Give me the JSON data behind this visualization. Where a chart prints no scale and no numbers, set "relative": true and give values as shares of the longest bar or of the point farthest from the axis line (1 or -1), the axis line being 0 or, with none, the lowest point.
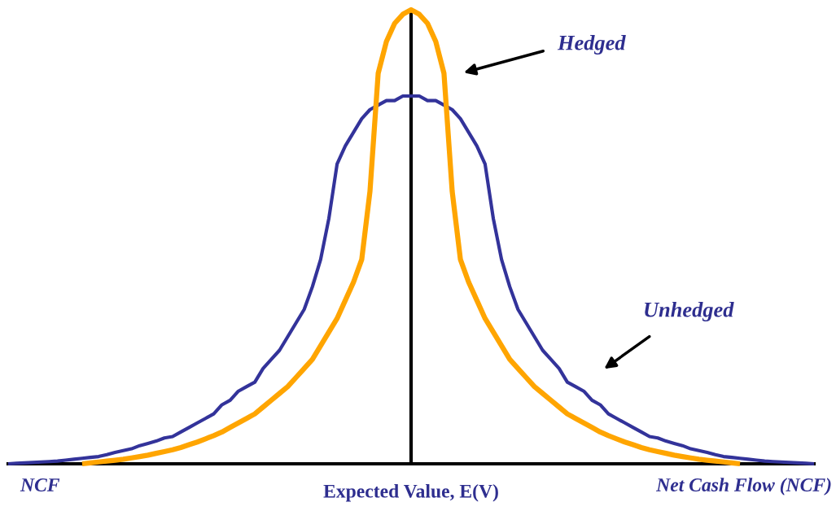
{
  "chart_data": {
    "type": "line",
    "relative": true,
    "xlabel": "Expected Value, E(V)",
    "categories": [
      null,
      null,
      null,
      null,
      null,
      null,
      null,
      null,
      null,
      null,
      null,
      null,
      null,
      null,
      null,
      null,
      null,
      null,
      null,
      null,
      null,
      null,
      null,
      null,
      null,
      null,
      null,
      null,
      null,
      null,
      null,
      null,
      null,
      null,
      null,
      null,
      null,
      null,
      null,
      null,
      null,
      null,
      null,
      null,
      null,
      null,
      null,
      null,
      null,
      null,
      null,
      null,
      null,
      null,
      null,
      null,
      null,
      null,
      null,
      null,
      null,
      null,
      null,
      null,
      null,
      null,
      null,
      null,
      null,
      null,
      null,
      null,
      null,
      null,
      null,
      null,
      null,
      null,
      null,
      null,
      null,
      null,
      null,
      null,
      null,
      null,
      null,
      null,
      null,
      null,
      null,
      null,
      null,
      null,
      null,
      null,
      null,
      null,
      null
    ],
    "series": [
      {
        "color": "#33339a",
        "values": [
          0,
          0.001,
          0.002,
          0.003,
          0.004,
          0.005,
          0.006,
          0.008,
          0.01,
          0.012,
          0.014,
          0.016,
          0.02,
          0.025,
          0.029,
          0.033,
          0.04,
          0.045,
          0.05,
          0.057,
          0.06,
          0.07,
          0.08,
          0.09,
          0.1,
          0.11,
          0.13,
          0.14,
          0.16,
          0.17,
          0.18,
          0.21,
          0.23,
          0.25,
          0.28,
          0.31,
          0.34,
          0.39,
          0.45,
          0.54,
          0.66,
          0.7,
          0.73,
          0.76,
          0.78,
          0.79,
          0.8,
          0.8,
          0.81,
          0.81,
          0.81,
          0.8,
          0.8,
          0.79,
          0.78,
          0.76,
          0.73,
          0.7,
          0.66,
          0.54,
          0.45,
          0.39,
          0.34,
          0.31,
          0.28,
          0.25,
          0.23,
          0.21,
          0.18,
          0.17,
          0.16,
          0.14,
          0.13,
          0.11,
          0.1,
          0.09,
          0.08,
          0.07,
          0.06,
          0.057,
          0.05,
          0.045,
          0.04,
          0.033,
          0.029,
          0.025,
          0.02,
          0.016,
          0.014,
          0.012,
          0.01,
          0.008,
          0.006,
          0.005,
          0.004,
          0.003,
          0.002,
          0.001,
          0
        ]
      },
      {
        "color": "#ffa500",
        "values": [
          null,
          null,
          null,
          null,
          null,
          null,
          null,
          null,
          null,
          0,
          0.002,
          0.004,
          0.006,
          0.008,
          0.01,
          0.013,
          0.016,
          0.019,
          0.023,
          0.027,
          0.031,
          0.036,
          0.042,
          0.048,
          0.055,
          0.062,
          0.07,
          0.08,
          0.09,
          0.1,
          0.11,
          0.125,
          0.14,
          0.155,
          0.17,
          0.19,
          0.21,
          0.23,
          0.26,
          0.29,
          0.32,
          0.36,
          0.4,
          0.45,
          0.6,
          0.86,
          0.93,
          0.97,
          0.99,
          1.0,
          0.99,
          0.97,
          0.93,
          0.86,
          0.6,
          0.45,
          0.4,
          0.36,
          0.32,
          0.29,
          0.26,
          0.23,
          0.21,
          0.19,
          0.17,
          0.155,
          0.14,
          0.125,
          0.11,
          0.1,
          0.09,
          0.08,
          0.07,
          0.062,
          0.055,
          0.048,
          0.042,
          0.036,
          0.031,
          0.027,
          0.023,
          0.019,
          0.016,
          0.013,
          0.01,
          0.008,
          0.006,
          0.004,
          0.002,
          0,
          null,
          null,
          null,
          null,
          null,
          null,
          null,
          null,
          null
        ]
      }
    ],
    "annotations": [
      "Hedged",
      "Unhedged",
      "NCF",
      "Net Cash Flow (NCF)"
    ]
  }
}
